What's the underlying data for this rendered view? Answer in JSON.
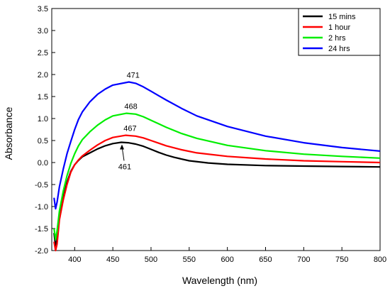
{
  "chart_data": {
    "type": "line",
    "xlabel": "Wavelength (nm)",
    "ylabel": "Absorbance",
    "xlim": [
      370,
      800
    ],
    "ylim": [
      -2.0,
      3.5
    ],
    "xticks": [
      400,
      450,
      500,
      550,
      600,
      650,
      700,
      750,
      800
    ],
    "yticks": [
      -2.0,
      -1.5,
      -1.0,
      -0.5,
      0.0,
      0.5,
      1.0,
      1.5,
      2.0,
      2.5,
      3.0,
      3.5
    ],
    "xtick_labels": [
      "400",
      "450",
      "500",
      "550",
      "600",
      "650",
      "700",
      "750",
      "800"
    ],
    "ytick_labels": [
      "-2.0",
      "-1.5",
      "-1.0",
      "-0.5",
      "0.0",
      "0.5",
      "1.0",
      "1.5",
      "2.0",
      "2.5",
      "3.0",
      "3.5"
    ],
    "legend_position": "top-right",
    "grid": false,
    "series": [
      {
        "name": "15 mins",
        "color": "#000000",
        "points": [
          [
            373,
            -1.6
          ],
          [
            375,
            -1.9
          ],
          [
            377,
            -1.75
          ],
          [
            380,
            -1.25
          ],
          [
            385,
            -0.8
          ],
          [
            390,
            -0.45
          ],
          [
            395,
            -0.2
          ],
          [
            400,
            -0.05
          ],
          [
            405,
            0.05
          ],
          [
            410,
            0.13
          ],
          [
            420,
            0.22
          ],
          [
            430,
            0.31
          ],
          [
            440,
            0.38
          ],
          [
            450,
            0.43
          ],
          [
            461,
            0.46
          ],
          [
            470,
            0.45
          ],
          [
            480,
            0.42
          ],
          [
            490,
            0.37
          ],
          [
            500,
            0.3
          ],
          [
            510,
            0.23
          ],
          [
            520,
            0.17
          ],
          [
            530,
            0.12
          ],
          [
            550,
            0.04
          ],
          [
            575,
            -0.01
          ],
          [
            600,
            -0.04
          ],
          [
            650,
            -0.07
          ],
          [
            700,
            -0.08
          ],
          [
            750,
            -0.09
          ],
          [
            800,
            -0.1
          ]
        ]
      },
      {
        "name": "1 hour",
        "color": "#ff0000",
        "points": [
          [
            373,
            -1.8
          ],
          [
            375,
            -2.0
          ],
          [
            377,
            -1.85
          ],
          [
            380,
            -1.3
          ],
          [
            385,
            -0.85
          ],
          [
            390,
            -0.5
          ],
          [
            395,
            -0.22
          ],
          [
            400,
            -0.05
          ],
          [
            405,
            0.06
          ],
          [
            410,
            0.15
          ],
          [
            420,
            0.28
          ],
          [
            430,
            0.4
          ],
          [
            440,
            0.5
          ],
          [
            450,
            0.57
          ],
          [
            467,
            0.62
          ],
          [
            480,
            0.6
          ],
          [
            490,
            0.56
          ],
          [
            500,
            0.5
          ],
          [
            510,
            0.44
          ],
          [
            520,
            0.38
          ],
          [
            540,
            0.29
          ],
          [
            560,
            0.22
          ],
          [
            600,
            0.14
          ],
          [
            650,
            0.08
          ],
          [
            700,
            0.04
          ],
          [
            750,
            0.02
          ],
          [
            800,
            0.0
          ]
        ]
      },
      {
        "name": "2 hrs",
        "color": "#00ee00",
        "points": [
          [
            373,
            -1.5
          ],
          [
            375,
            -1.75
          ],
          [
            377,
            -1.55
          ],
          [
            380,
            -1.1
          ],
          [
            385,
            -0.65
          ],
          [
            390,
            -0.3
          ],
          [
            395,
            -0.02
          ],
          [
            400,
            0.2
          ],
          [
            405,
            0.38
          ],
          [
            410,
            0.52
          ],
          [
            420,
            0.7
          ],
          [
            430,
            0.85
          ],
          [
            440,
            0.97
          ],
          [
            450,
            1.06
          ],
          [
            468,
            1.12
          ],
          [
            480,
            1.1
          ],
          [
            490,
            1.04
          ],
          [
            500,
            0.96
          ],
          [
            510,
            0.88
          ],
          [
            520,
            0.8
          ],
          [
            540,
            0.66
          ],
          [
            560,
            0.55
          ],
          [
            600,
            0.39
          ],
          [
            650,
            0.27
          ],
          [
            700,
            0.19
          ],
          [
            750,
            0.14
          ],
          [
            800,
            0.1
          ]
        ]
      },
      {
        "name": "24 hrs",
        "color": "#0000ff",
        "points": [
          [
            373,
            -0.8
          ],
          [
            375,
            -1.05
          ],
          [
            377,
            -0.9
          ],
          [
            380,
            -0.55
          ],
          [
            385,
            -0.15
          ],
          [
            390,
            0.2
          ],
          [
            395,
            0.48
          ],
          [
            400,
            0.75
          ],
          [
            405,
            0.98
          ],
          [
            410,
            1.15
          ],
          [
            420,
            1.38
          ],
          [
            430,
            1.55
          ],
          [
            440,
            1.67
          ],
          [
            450,
            1.76
          ],
          [
            471,
            1.83
          ],
          [
            480,
            1.8
          ],
          [
            490,
            1.72
          ],
          [
            500,
            1.62
          ],
          [
            510,
            1.52
          ],
          [
            520,
            1.42
          ],
          [
            540,
            1.23
          ],
          [
            560,
            1.06
          ],
          [
            600,
            0.82
          ],
          [
            650,
            0.6
          ],
          [
            700,
            0.45
          ],
          [
            750,
            0.34
          ],
          [
            800,
            0.26
          ]
        ]
      }
    ],
    "annotations": [
      {
        "text": "471",
        "x": 471,
        "y": 1.83
      },
      {
        "text": "468",
        "x": 468,
        "y": 1.12
      },
      {
        "text": "467",
        "x": 467,
        "y": 0.62
      },
      {
        "text": "461",
        "x": 461,
        "y": 0.46
      }
    ]
  }
}
